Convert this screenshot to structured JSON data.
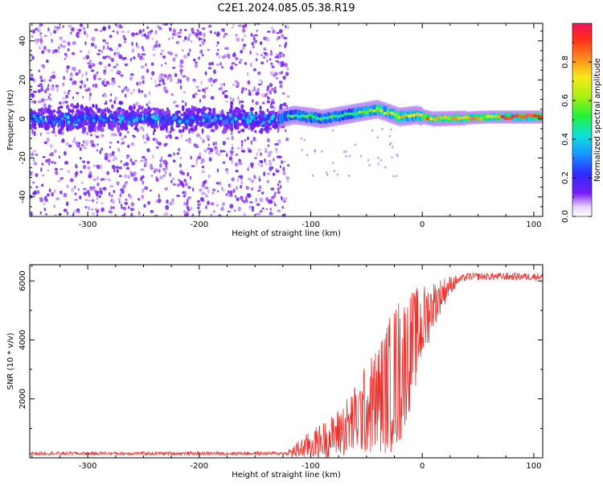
{
  "chart_data": [
    {
      "type": "heatmap",
      "title": "C2E1.2024.085.05.38.R19",
      "xlabel": "Height of straight line (km)",
      "ylabel": "Frequency (Hz)",
      "xlim": [
        -352,
        108
      ],
      "ylim": [
        -50,
        49
      ],
      "xticks": [
        -300,
        -200,
        -100,
        0,
        100
      ],
      "yticks": [
        -40,
        -20,
        0,
        20,
        40
      ],
      "colorbar": {
        "label": "Normalized spectral amplitude",
        "ticks": [
          "0.0",
          "0.2",
          "0.4",
          "0.6",
          "0.8"
        ],
        "range": [
          0,
          1
        ]
      },
      "ridge": [
        {
          "h": -350,
          "f": 0
        },
        {
          "h": -130,
          "f": 0
        },
        {
          "h": -115,
          "f": 2
        },
        {
          "h": -100,
          "f": 1
        },
        {
          "h": -90,
          "f": 0
        },
        {
          "h": -80,
          "f": 1
        },
        {
          "h": -60,
          "f": 3
        },
        {
          "h": -40,
          "f": 5
        },
        {
          "h": -30,
          "f": 3
        },
        {
          "h": -20,
          "f": 1
        },
        {
          "h": -5,
          "f": 2
        },
        {
          "h": 10,
          "f": 0
        },
        {
          "h": 40,
          "f": 0.5
        },
        {
          "h": 60,
          "f": 1
        },
        {
          "h": 80,
          "f": 1
        },
        {
          "h": 108,
          "f": 1
        }
      ]
    },
    {
      "type": "line",
      "xlabel": "Height of straight line (km)",
      "ylabel": "SNR (10 * v/v)",
      "xlim": [
        -352,
        108
      ],
      "ylim": [
        0,
        6550
      ],
      "xticks": [
        -300,
        -200,
        -100,
        0,
        100
      ],
      "yticks": [
        2000,
        4000,
        6000
      ],
      "series": [
        {
          "name": "SNR",
          "color": "#e8322e",
          "envelope": [
            {
              "h": -352,
              "snr": 150
            },
            {
              "h": -120,
              "snr": 150
            },
            {
              "h": -100,
              "snr": 500
            },
            {
              "h": -80,
              "snr": 800
            },
            {
              "h": -60,
              "snr": 1400
            },
            {
              "h": -40,
              "snr": 2200
            },
            {
              "h": -20,
              "snr": 3200
            },
            {
              "h": -5,
              "snr": 4300
            },
            {
              "h": 10,
              "snr": 5300
            },
            {
              "h": 25,
              "snr": 5900
            },
            {
              "h": 40,
              "snr": 6150
            },
            {
              "h": 108,
              "snr": 6150
            }
          ]
        }
      ]
    }
  ]
}
